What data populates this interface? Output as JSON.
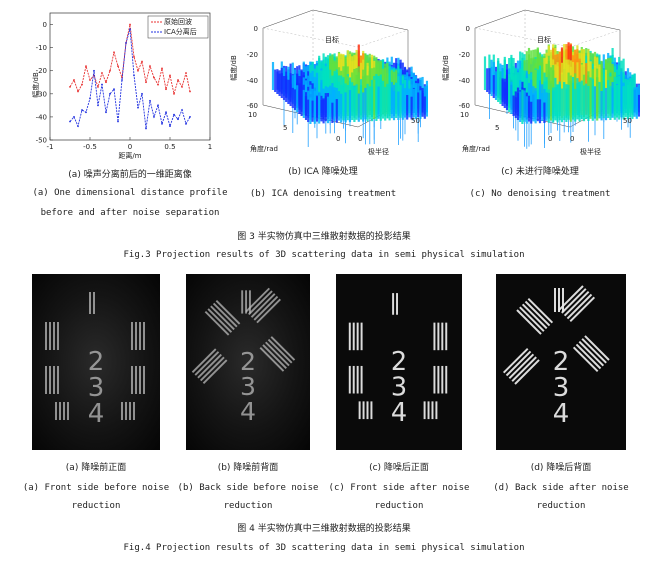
{
  "fig3": {
    "a": {
      "legend": [
        "原始回波",
        "ICA分离后"
      ],
      "xlabel": "距离/m",
      "ylabel": "幅度/dB",
      "yticks": [
        "0",
        "-10",
        "-20",
        "-30",
        "-40",
        "-50"
      ],
      "xticks": [
        "-1",
        "-0.5",
        "0",
        "0.5",
        "1"
      ],
      "cap_cn": "(a) 噪声分离前后的一维距离像",
      "cap_en1": "(a) One dimensional distance profile",
      "cap_en2": "before and after noise separation"
    },
    "b": {
      "target": "目标",
      "zlabel": "幅度/dB",
      "zticks": [
        "0",
        "-20",
        "-40",
        "-60"
      ],
      "angle_label": "角度/rad",
      "radius_label": "极半径",
      "angle_ticks": [
        "10",
        "5",
        "0"
      ],
      "radius_ticks": [
        "0",
        "50"
      ],
      "cap_cn": "(b) ICA 降噪处理",
      "cap_en": "(b) ICA denoising treatment"
    },
    "c": {
      "target": "目标",
      "zlabel": "幅度/dB",
      "zticks": [
        "0",
        "-20",
        "-40",
        "-60"
      ],
      "angle_label": "角度/rad",
      "radius_label": "极半径",
      "angle_ticks": [
        "10",
        "5",
        "0"
      ],
      "radius_ticks": [
        "0",
        "50"
      ],
      "cap_cn": "(c) 未进行降噪处理",
      "cap_en": "(c) No denoising treatment"
    },
    "title_cn": "图 3 半实物仿真中三维散射数据的投影结果",
    "title_en": "Fig.3 Projection results of 3D scattering data in semi physical simulation"
  },
  "fig4": {
    "panels": [
      {
        "cap_cn": "(a) 降噪前正面",
        "cap_en1": "(a) Front side before noise",
        "cap_en2": "reduction",
        "digits": [
          "1",
          "2",
          "3",
          "4"
        ]
      },
      {
        "cap_cn": "(b) 降噪前背面",
        "cap_en1": "(b) Back side before noise",
        "cap_en2": "reduction",
        "digits": [
          "1",
          "2",
          "3",
          "4"
        ]
      },
      {
        "cap_cn": "(c) 降噪后正面",
        "cap_en1": "(c) Front side after noise",
        "cap_en2": "reduction",
        "digits": [
          "1",
          "2",
          "3",
          "4"
        ]
      },
      {
        "cap_cn": "(d) 降噪后背面",
        "cap_en1": "(d) Back side after noise",
        "cap_en2": "reduction",
        "digits": [
          "1",
          "2",
          "3",
          "4"
        ]
      }
    ],
    "title_cn": "图 4 半实物仿真中三维散射数据的投影结果",
    "title_en": "Fig.4 Projection results of 3D scattering data in semi physical simulation"
  },
  "chart_data": {
    "type": "line",
    "xlabel": "距离/m",
    "ylabel": "幅度/dB",
    "xlim": [
      -1,
      1
    ],
    "ylim": [
      -50,
      5
    ],
    "series": [
      {
        "name": "原始回波",
        "color": "#e83030",
        "x": [
          -0.75,
          -0.7,
          -0.65,
          -0.6,
          -0.55,
          -0.5,
          -0.45,
          -0.4,
          -0.35,
          -0.3,
          -0.25,
          -0.2,
          -0.15,
          -0.1,
          -0.05,
          0,
          0.05,
          0.1,
          0.15,
          0.2,
          0.25,
          0.3,
          0.35,
          0.4,
          0.45,
          0.5,
          0.55,
          0.6,
          0.65,
          0.7,
          0.75
        ],
        "y": [
          -27,
          -24,
          -29,
          -26,
          -18,
          -24,
          -22,
          -27,
          -21,
          -25,
          -20,
          -12,
          -18,
          -23,
          -8,
          0,
          -14,
          -20,
          -16,
          -25,
          -18,
          -23,
          -26,
          -19,
          -28,
          -22,
          -30,
          -24,
          -27,
          -21,
          -29
        ]
      },
      {
        "name": "ICA分离后",
        "color": "#2030e0",
        "x": [
          -0.75,
          -0.7,
          -0.65,
          -0.6,
          -0.55,
          -0.5,
          -0.45,
          -0.4,
          -0.35,
          -0.3,
          -0.25,
          -0.2,
          -0.15,
          -0.1,
          -0.05,
          0,
          0.05,
          0.1,
          0.15,
          0.2,
          0.25,
          0.3,
          0.35,
          0.4,
          0.45,
          0.5,
          0.55,
          0.6,
          0.65,
          0.7,
          0.75
        ],
        "y": [
          -42,
          -40,
          -44,
          -37,
          -38,
          -32,
          -20,
          -35,
          -26,
          -38,
          -30,
          -28,
          -42,
          -24,
          -8,
          -2,
          -22,
          -36,
          -30,
          -45,
          -33,
          -40,
          -35,
          -43,
          -38,
          -44,
          -39,
          -41,
          -37,
          -43,
          -40
        ]
      }
    ]
  }
}
